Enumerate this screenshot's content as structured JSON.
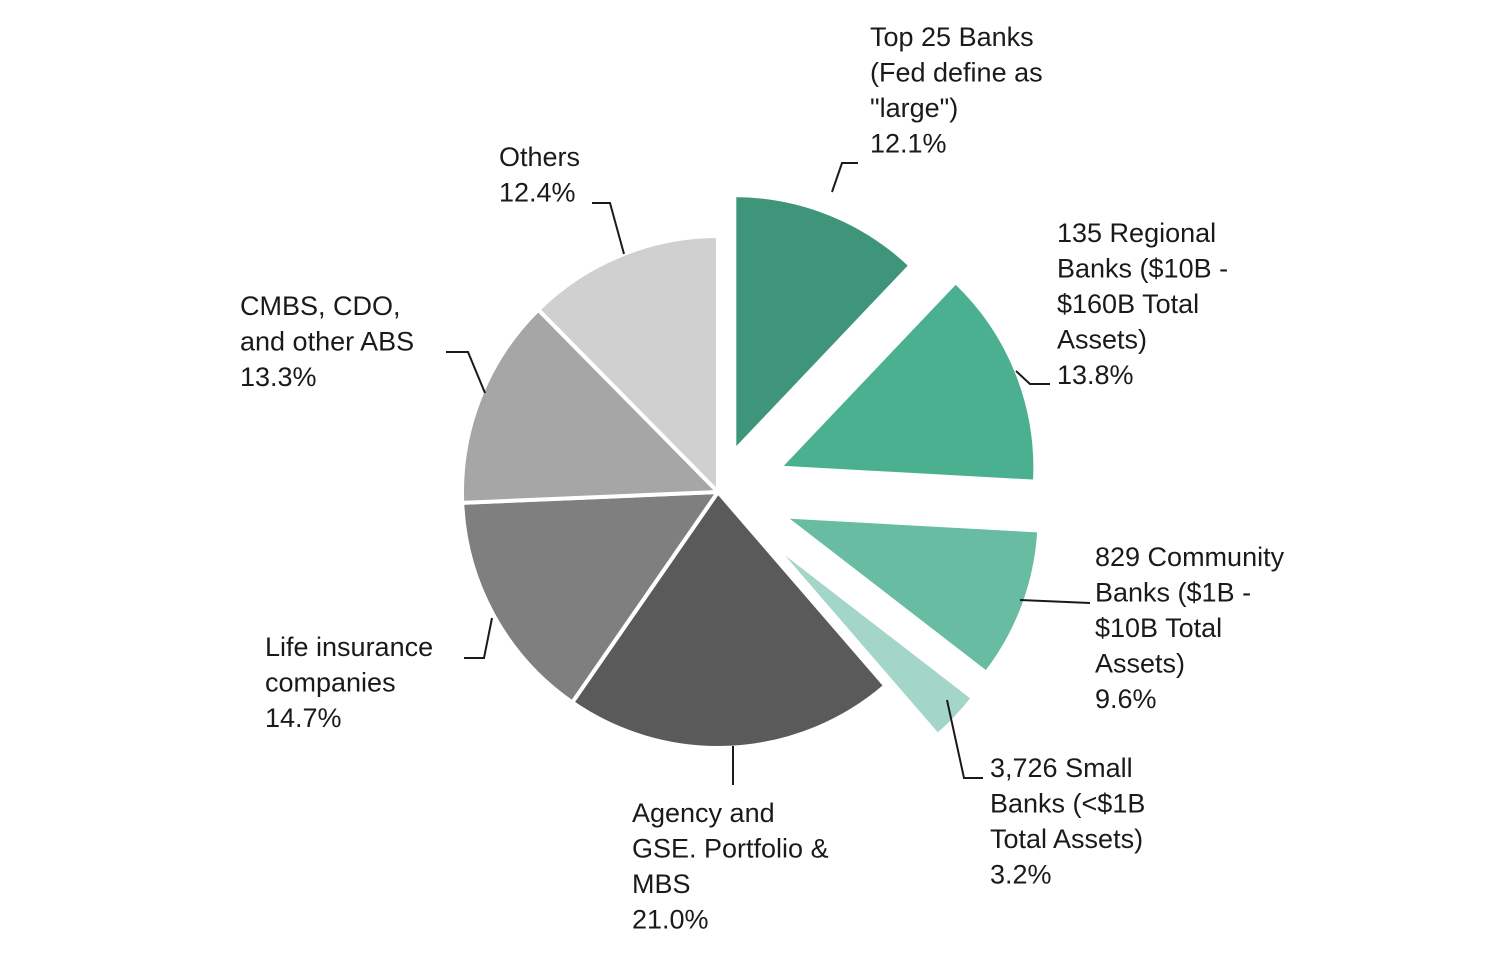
{
  "chart_data": {
    "type": "pie",
    "title": "",
    "start_angle_deg": 0,
    "direction": "clockwise",
    "slices": [
      {
        "label_lines": [
          "Top 25 Banks",
          "(Fed define as",
          "\"large\")"
        ],
        "value": 12.1,
        "value_label": "12.1%",
        "color": "#3f957a",
        "exploded": true
      },
      {
        "label_lines": [
          "135 Regional",
          "Banks ($10B -",
          "$160B Total",
          "Assets)"
        ],
        "value": 13.8,
        "value_label": "13.8%",
        "color": "#4bb08f",
        "exploded": true
      },
      {
        "label_lines": [
          "829 Community",
          "Banks ($1B -",
          "$10B Total",
          "Assets)"
        ],
        "value": 9.6,
        "value_label": "9.6%",
        "color": "#68bca2",
        "exploded": true
      },
      {
        "label_lines": [
          "3,726 Small",
          "Banks (<$1B",
          "Total Assets)"
        ],
        "value": 3.2,
        "value_label": "3.2%",
        "color": "#a3d6c8",
        "exploded": true
      },
      {
        "label_lines": [
          "Agency and",
          "GSE. Portfolio &",
          "MBS"
        ],
        "value": 21.0,
        "value_label": "21.0%",
        "color": "#5a5a5a",
        "exploded": false
      },
      {
        "label_lines": [
          "Life insurance",
          "companies"
        ],
        "value": 14.7,
        "value_label": "14.7%",
        "color": "#7f7f7f",
        "exploded": false
      },
      {
        "label_lines": [
          "CMBS, CDO,",
          "and other ABS"
        ],
        "value": 13.3,
        "value_label": "13.3%",
        "color": "#a6a6a6",
        "exploded": false
      },
      {
        "label_lines": [
          "Others"
        ],
        "value": 12.4,
        "value_label": "12.4%",
        "color": "#d0d0d0",
        "exploded": false
      }
    ]
  }
}
